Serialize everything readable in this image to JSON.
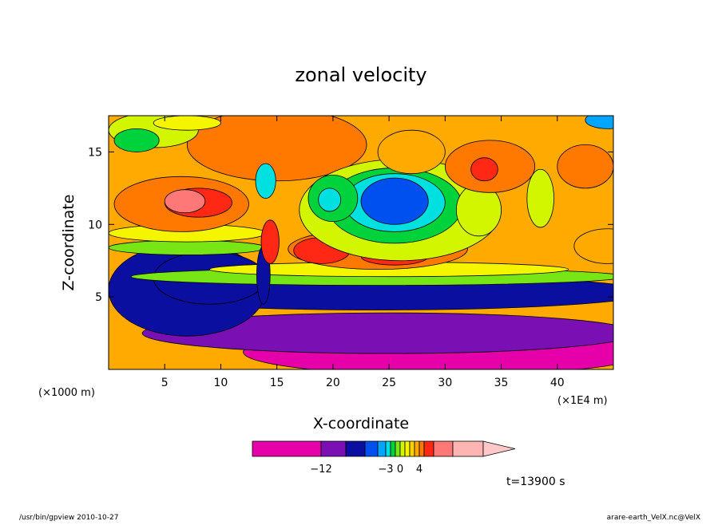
{
  "chart_data": {
    "type": "heatmap",
    "title": "zonal velocity",
    "xlabel": "X-coordinate",
    "ylabel": "Z-coordinate",
    "x_unit_left": "(×1000 m)",
    "x_unit_right": "(×1E4 m)",
    "xlim": [
      0,
      45
    ],
    "ylim": [
      0,
      17.5
    ],
    "x_ticks": [
      5,
      10,
      15,
      20,
      25,
      30,
      35,
      40
    ],
    "y_ticks": [
      5,
      10,
      15
    ],
    "colorbar": {
      "levels": [
        -18,
        -12,
        -9,
        -6,
        -4,
        -3,
        -2,
        -1,
        0,
        1,
        2,
        3,
        4,
        6,
        9,
        12
      ],
      "colors": [
        "#e600aa",
        "#7a0fb4",
        "#0a0fa0",
        "#0050f0",
        "#00a5ff",
        "#00e0e0",
        "#00d23c",
        "#78e614",
        "#d2f500",
        "#f5f500",
        "#ffd200",
        "#ffaa00",
        "#ff7800",
        "#ff2814",
        "#ff7878",
        "#ffb4b4"
      ],
      "tick_labels": [
        {
          "text": "−12",
          "value": -12
        },
        {
          "text": "−3",
          "value": -3
        },
        {
          "text": "0",
          "value": 0
        },
        {
          "text": "4",
          "value": 4
        }
      ]
    },
    "field": {
      "background": 3,
      "regions": [
        {
          "cx": 30,
          "cy": 1.2,
          "rx": 18,
          "ry": 1.6,
          "value": -14
        },
        {
          "cx": 25,
          "cy": 2.5,
          "rx": 22,
          "ry": 1.4,
          "value": -10
        },
        {
          "cx": 24,
          "cy": 5.3,
          "rx": 24,
          "ry": 1.2,
          "value": -7
        },
        {
          "cx": 7,
          "cy": 5.5,
          "rx": 7,
          "ry": 3.2,
          "value": -7
        },
        {
          "cx": 9,
          "cy": 6.3,
          "rx": 5,
          "ry": 1.8,
          "value": -9
        },
        {
          "cx": 24,
          "cy": 6.4,
          "rx": 22,
          "ry": 0.6,
          "value": -1
        },
        {
          "cx": 25,
          "cy": 6.9,
          "rx": 16,
          "ry": 0.5,
          "value": 1
        },
        {
          "cx": 7,
          "cy": 8.4,
          "rx": 7,
          "ry": 0.5,
          "value": -1
        },
        {
          "cx": 7,
          "cy": 9.4,
          "rx": 7,
          "ry": 0.6,
          "value": 1
        },
        {
          "cx": 24,
          "cy": 8.3,
          "rx": 8,
          "ry": 1.4,
          "value": 4
        },
        {
          "cx": 25.5,
          "cy": 7.8,
          "rx": 3,
          "ry": 0.6,
          "value": 6
        },
        {
          "cx": 19,
          "cy": 8.2,
          "rx": 2.5,
          "ry": 0.9,
          "value": 6
        },
        {
          "cx": 6.5,
          "cy": 11.4,
          "rx": 6,
          "ry": 1.9,
          "value": 4
        },
        {
          "cx": 8,
          "cy": 11.5,
          "rx": 3,
          "ry": 1,
          "value": 6
        },
        {
          "cx": 6.8,
          "cy": 11.6,
          "rx": 1.8,
          "ry": 0.8,
          "value": 9
        },
        {
          "cx": 15,
          "cy": 15.5,
          "rx": 8,
          "ry": 2.5,
          "value": 4
        },
        {
          "cx": 4,
          "cy": 16.5,
          "rx": 4,
          "ry": 1.2,
          "value": 0
        },
        {
          "cx": 2.5,
          "cy": 15.8,
          "rx": 2,
          "ry": 0.8,
          "value": -2
        },
        {
          "cx": 7,
          "cy": 17,
          "rx": 3,
          "ry": 0.5,
          "value": 1
        },
        {
          "cx": 26,
          "cy": 11,
          "rx": 9,
          "ry": 3.5,
          "value": 0
        },
        {
          "cx": 25.5,
          "cy": 11.3,
          "rx": 6,
          "ry": 2.6,
          "value": -2
        },
        {
          "cx": 25.5,
          "cy": 11.5,
          "rx": 4.5,
          "ry": 2,
          "value": -3
        },
        {
          "cx": 25.5,
          "cy": 11.6,
          "rx": 3,
          "ry": 1.6,
          "value": -6
        },
        {
          "cx": 20,
          "cy": 11.8,
          "rx": 2.2,
          "ry": 1.6,
          "value": -2
        },
        {
          "cx": 19.7,
          "cy": 11.7,
          "rx": 1,
          "ry": 0.8,
          "value": -3
        },
        {
          "cx": 33,
          "cy": 11,
          "rx": 2,
          "ry": 1.8,
          "value": 0
        },
        {
          "cx": 34,
          "cy": 14,
          "rx": 4,
          "ry": 1.8,
          "value": 4
        },
        {
          "cx": 33.5,
          "cy": 13.8,
          "rx": 1.2,
          "ry": 0.8,
          "value": 6
        },
        {
          "cx": 27,
          "cy": 15,
          "rx": 3,
          "ry": 1.5,
          "value": 3
        },
        {
          "cx": 42.5,
          "cy": 14,
          "rx": 2.5,
          "ry": 1.5,
          "value": 4
        },
        {
          "cx": 44.5,
          "cy": 8.5,
          "rx": 3,
          "ry": 1.2,
          "value": 3
        },
        {
          "cx": 38.5,
          "cy": 11.8,
          "rx": 1.2,
          "ry": 2,
          "value": 0
        },
        {
          "cx": 44.5,
          "cy": 17.2,
          "rx": 2,
          "ry": 0.6,
          "value": -4
        },
        {
          "cx": 14,
          "cy": 13,
          "rx": 0.9,
          "ry": 1.2,
          "value": -3
        },
        {
          "cx": 13.8,
          "cy": 6.5,
          "rx": 0.6,
          "ry": 2,
          "value": -9
        },
        {
          "cx": 14.4,
          "cy": 8.8,
          "rx": 0.8,
          "ry": 1.5,
          "value": 6
        }
      ]
    }
  },
  "time_label": "t=13900 s",
  "footer_left": "/usr/bin/gpview   2010-10-27",
  "footer_right": "arare-earth_VelX.nc@VelX"
}
